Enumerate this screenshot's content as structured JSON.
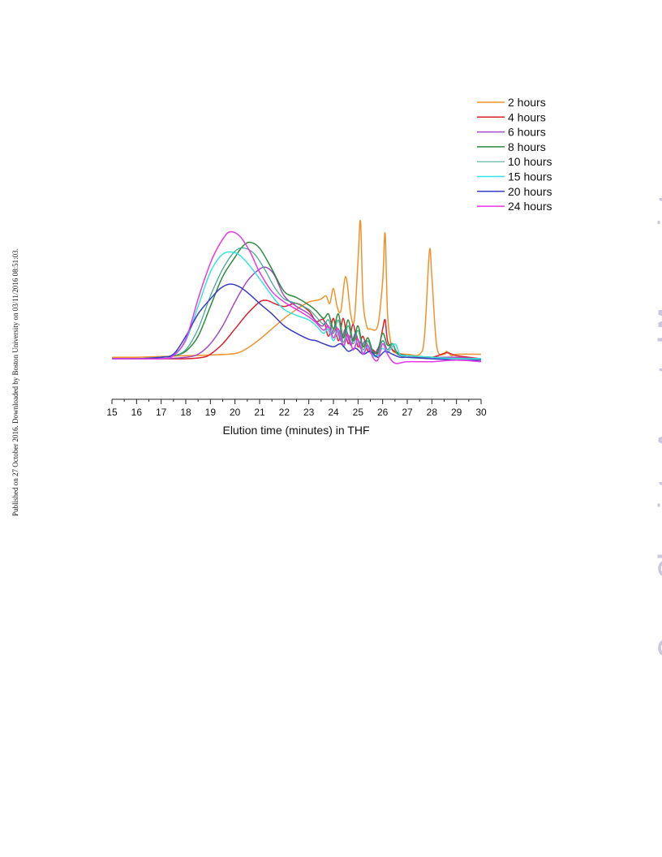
{
  "side_note": "Published on 27 October 2016. Downloaded by Boston University on 03/11/2016 08:51:03.",
  "watermark": "Green Chemistry Accepted Manuscript",
  "chart_data": {
    "type": "line",
    "xlabel": "Elution time (minutes) in THF",
    "ylabel": "",
    "xlim": [
      15,
      30
    ],
    "ylim": [
      0,
      1
    ],
    "xticks": [
      15,
      16,
      17,
      18,
      19,
      20,
      21,
      22,
      23,
      24,
      25,
      26,
      27,
      28,
      29,
      30
    ],
    "legend_position": "top-right",
    "grid": false,
    "series": [
      {
        "name": "2 hours",
        "color": "#f0922b",
        "x": [
          15,
          16,
          17,
          18,
          19,
          20,
          20.5,
          21,
          21.5,
          22,
          22.5,
          23,
          23.3,
          23.5,
          23.7,
          23.85,
          24.0,
          24.15,
          24.3,
          24.5,
          24.7,
          24.85,
          25.0,
          25.1,
          25.2,
          25.35,
          25.5,
          25.8,
          26.0,
          26.1,
          26.2,
          26.35,
          26.5,
          27,
          27.5,
          27.7,
          27.9,
          28.0,
          28.2,
          28.5,
          28.6,
          28.8,
          29,
          30
        ],
        "y": [
          0.01,
          0.01,
          0.015,
          0.02,
          0.025,
          0.035,
          0.07,
          0.13,
          0.2,
          0.27,
          0.33,
          0.38,
          0.39,
          0.4,
          0.42,
          0.37,
          0.47,
          0.35,
          0.32,
          0.55,
          0.3,
          0.26,
          0.66,
          0.92,
          0.4,
          0.22,
          0.2,
          0.22,
          0.52,
          0.84,
          0.3,
          0.09,
          0.04,
          0.03,
          0.03,
          0.15,
          0.72,
          0.55,
          0.08,
          0.03,
          0.05,
          0.02,
          0.03,
          0.03
        ]
      },
      {
        "name": "4 hours",
        "color": "#d8212b",
        "x": [
          15,
          16,
          17,
          18,
          18.7,
          19,
          19.5,
          20,
          20.5,
          21,
          21.3,
          21.6,
          22,
          22.5,
          23,
          23.3,
          23.6,
          23.8,
          24.0,
          24.2,
          24.4,
          24.6,
          24.8,
          25.0,
          25.2,
          25.4,
          25.6,
          25.8,
          26.0,
          26.1,
          26.2,
          26.4,
          26.6,
          27,
          28,
          28.6,
          29,
          30
        ],
        "y": [
          0.0,
          0.0,
          0.0,
          0.0,
          0.01,
          0.03,
          0.1,
          0.2,
          0.3,
          0.38,
          0.39,
          0.37,
          0.35,
          0.37,
          0.32,
          0.25,
          0.26,
          0.15,
          0.27,
          0.12,
          0.27,
          0.1,
          0.23,
          0.08,
          0.15,
          0.05,
          0.06,
          0.04,
          0.2,
          0.26,
          0.12,
          0.06,
          0.04,
          0.02,
          0.01,
          0.04,
          0.02,
          0.0
        ]
      },
      {
        "name": "6 hours",
        "color": "#a24bc3",
        "x": [
          15,
          16,
          17,
          18,
          18.5,
          19,
          19.5,
          20,
          20.5,
          21,
          21.3,
          21.6,
          22,
          22.5,
          23,
          23.5,
          23.7,
          23.9,
          24.1,
          24.3,
          24.5,
          24.7,
          24.9,
          25.1,
          25.3,
          25.5,
          25.7,
          26.0,
          26.2,
          26.4,
          26.6,
          27,
          28,
          29,
          30
        ],
        "y": [
          0.0,
          0.0,
          0.0,
          0.01,
          0.03,
          0.1,
          0.22,
          0.38,
          0.52,
          0.6,
          0.61,
          0.56,
          0.42,
          0.35,
          0.3,
          0.22,
          0.24,
          0.16,
          0.22,
          0.12,
          0.2,
          0.09,
          0.17,
          0.07,
          0.12,
          0.04,
          0.04,
          0.12,
          0.06,
          0.1,
          0.03,
          0.02,
          0.01,
          0.01,
          0.0
        ]
      },
      {
        "name": "8 hours",
        "color": "#2e8b3d",
        "x": [
          15,
          16,
          17,
          17.5,
          18,
          18.5,
          19,
          19.5,
          20,
          20.3,
          20.6,
          21,
          21.5,
          22,
          22.5,
          23,
          23.3,
          23.6,
          23.8,
          24,
          24.2,
          24.4,
          24.6,
          24.8,
          25,
          25.2,
          25.4,
          25.6,
          25.8,
          26.0,
          26.2,
          26.4,
          26.6,
          27,
          28,
          29,
          30
        ],
        "y": [
          0.0,
          0.0,
          0.01,
          0.02,
          0.05,
          0.15,
          0.35,
          0.55,
          0.68,
          0.75,
          0.78,
          0.74,
          0.6,
          0.45,
          0.41,
          0.36,
          0.32,
          0.27,
          0.3,
          0.2,
          0.3,
          0.14,
          0.26,
          0.12,
          0.22,
          0.08,
          0.14,
          0.05,
          0.05,
          0.17,
          0.09,
          0.1,
          0.04,
          0.02,
          0.01,
          0.0,
          0.0
        ]
      },
      {
        "name": "10 hours",
        "color": "#39a88a",
        "x": [
          15,
          16,
          17,
          17.5,
          18,
          18.5,
          19,
          19.5,
          20,
          20.4,
          20.8,
          21.2,
          21.6,
          22,
          22.5,
          23,
          23.3,
          23.6,
          23.8,
          24,
          24.2,
          24.4,
          24.6,
          24.8,
          25,
          25.2,
          25.4,
          25.6,
          25.8,
          26.0,
          26.2,
          26.4,
          26.6,
          27,
          28,
          29,
          30
        ],
        "y": [
          0.0,
          0.0,
          0.01,
          0.02,
          0.06,
          0.2,
          0.42,
          0.6,
          0.72,
          0.74,
          0.7,
          0.6,
          0.48,
          0.4,
          0.37,
          0.33,
          0.28,
          0.23,
          0.26,
          0.17,
          0.26,
          0.11,
          0.22,
          0.1,
          0.19,
          0.06,
          0.12,
          0.03,
          0.03,
          0.12,
          0.06,
          0.1,
          0.03,
          0.01,
          0.0,
          0.0,
          0.0
        ]
      },
      {
        "name": "15 hours",
        "color": "#36e3e0",
        "x": [
          15,
          16,
          17,
          17.5,
          18,
          18.5,
          19,
          19.5,
          20,
          20.4,
          20.8,
          21.2,
          21.6,
          22,
          22.5,
          23,
          23.3,
          23.6,
          23.8,
          24,
          24.2,
          24.4,
          24.6,
          24.8,
          25,
          25.2,
          25.4,
          25.6,
          25.8,
          26.0,
          26.2,
          26.5,
          26.7,
          27,
          28,
          29,
          30
        ],
        "y": [
          0.0,
          0.0,
          0.01,
          0.03,
          0.12,
          0.35,
          0.58,
          0.7,
          0.71,
          0.66,
          0.58,
          0.49,
          0.4,
          0.33,
          0.29,
          0.26,
          0.22,
          0.17,
          0.2,
          0.12,
          0.19,
          0.08,
          0.16,
          0.06,
          0.12,
          0.04,
          0.08,
          0.02,
          0.02,
          0.07,
          0.04,
          0.1,
          0.03,
          0.02,
          0.01,
          0.0,
          0.0
        ]
      },
      {
        "name": "20 hours",
        "color": "#3a3cc4",
        "x": [
          15,
          16,
          17,
          17.5,
          18,
          18.5,
          19,
          19.4,
          19.8,
          20.2,
          20.6,
          21,
          21.5,
          22,
          22.5,
          23,
          23.3,
          23.6,
          24,
          24.3,
          24.6,
          24.9,
          25.2,
          25.5,
          25.8,
          26.1,
          26.4,
          26.7,
          27,
          28,
          29,
          30
        ],
        "y": [
          0.0,
          0.0,
          0.01,
          0.03,
          0.15,
          0.3,
          0.4,
          0.47,
          0.5,
          0.48,
          0.43,
          0.37,
          0.3,
          0.22,
          0.17,
          0.13,
          0.12,
          0.1,
          0.08,
          0.1,
          0.05,
          0.07,
          0.03,
          0.05,
          0.01,
          0.05,
          0.03,
          0.01,
          0.01,
          0.0,
          -0.01,
          -0.01
        ]
      },
      {
        "name": "24 hours",
        "color": "#e838e6",
        "x": [
          15,
          16,
          17,
          17.5,
          18,
          18.5,
          18.8,
          19.1,
          19.5,
          19.8,
          20.2,
          20.6,
          21,
          21.5,
          22,
          22.5,
          23,
          23.3,
          23.6,
          23.8,
          24,
          24.2,
          24.4,
          24.6,
          24.8,
          25,
          25.2,
          25.4,
          25.6,
          25.8,
          26.0,
          26.2,
          26.5,
          27,
          28,
          29,
          30
        ],
        "y": [
          0.0,
          0.0,
          0.0,
          0.02,
          0.13,
          0.4,
          0.55,
          0.68,
          0.8,
          0.85,
          0.82,
          0.72,
          0.58,
          0.45,
          0.38,
          0.33,
          0.28,
          0.24,
          0.19,
          0.22,
          0.14,
          0.2,
          0.09,
          0.16,
          0.06,
          0.13,
          0.03,
          0.09,
          0.01,
          -0.01,
          0.1,
          0.03,
          -0.03,
          -0.02,
          -0.02,
          -0.01,
          -0.02
        ]
      }
    ]
  }
}
